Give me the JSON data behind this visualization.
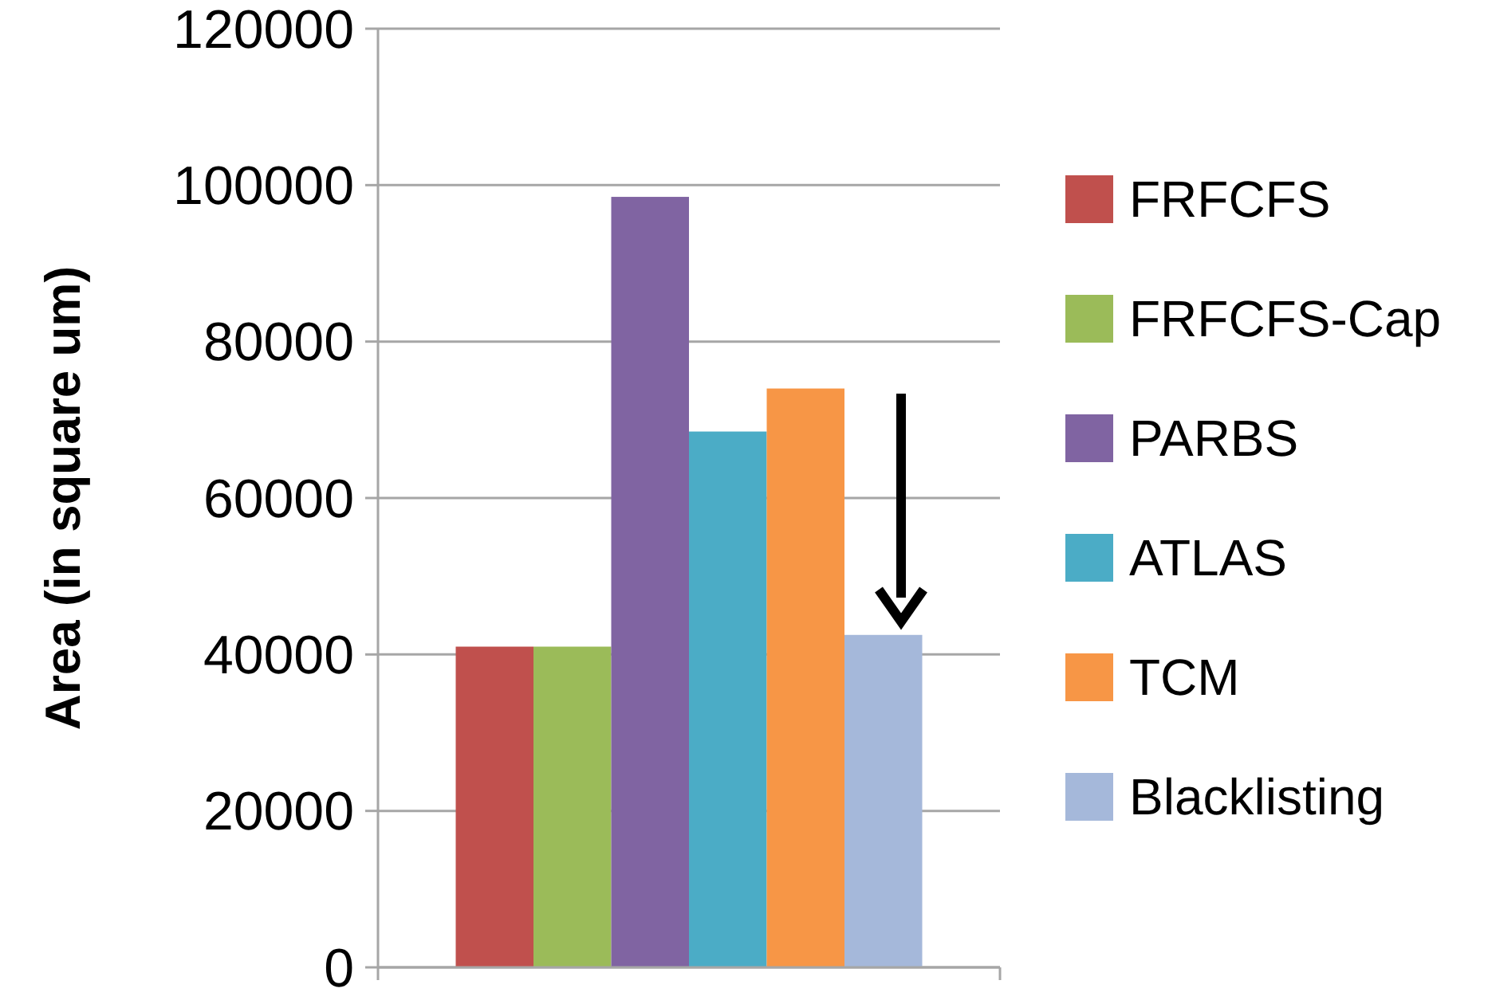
{
  "chart_data": {
    "type": "bar",
    "ylabel": "Area (in square um)",
    "categories": [
      null
    ],
    "series": [
      {
        "name": "FRFCFS",
        "color": "#c0504d",
        "values": [
          41000
        ]
      },
      {
        "name": "FRFCFS-Cap",
        "color": "#9bbb59",
        "values": [
          41000
        ]
      },
      {
        "name": "PARBS",
        "color": "#8064a2",
        "values": [
          98500
        ]
      },
      {
        "name": "ATLAS",
        "color": "#4bacc6",
        "values": [
          68500
        ]
      },
      {
        "name": "TCM",
        "color": "#f79646",
        "values": [
          74000
        ]
      },
      {
        "name": "Blacklisting",
        "color": "#a5b8da",
        "values": [
          42500
        ]
      }
    ],
    "ylim": [
      0,
      120000
    ],
    "yticks": [
      0,
      20000,
      40000,
      60000,
      80000,
      100000,
      120000
    ],
    "grid": "y",
    "legend": "right",
    "tick_labels": "y"
  }
}
